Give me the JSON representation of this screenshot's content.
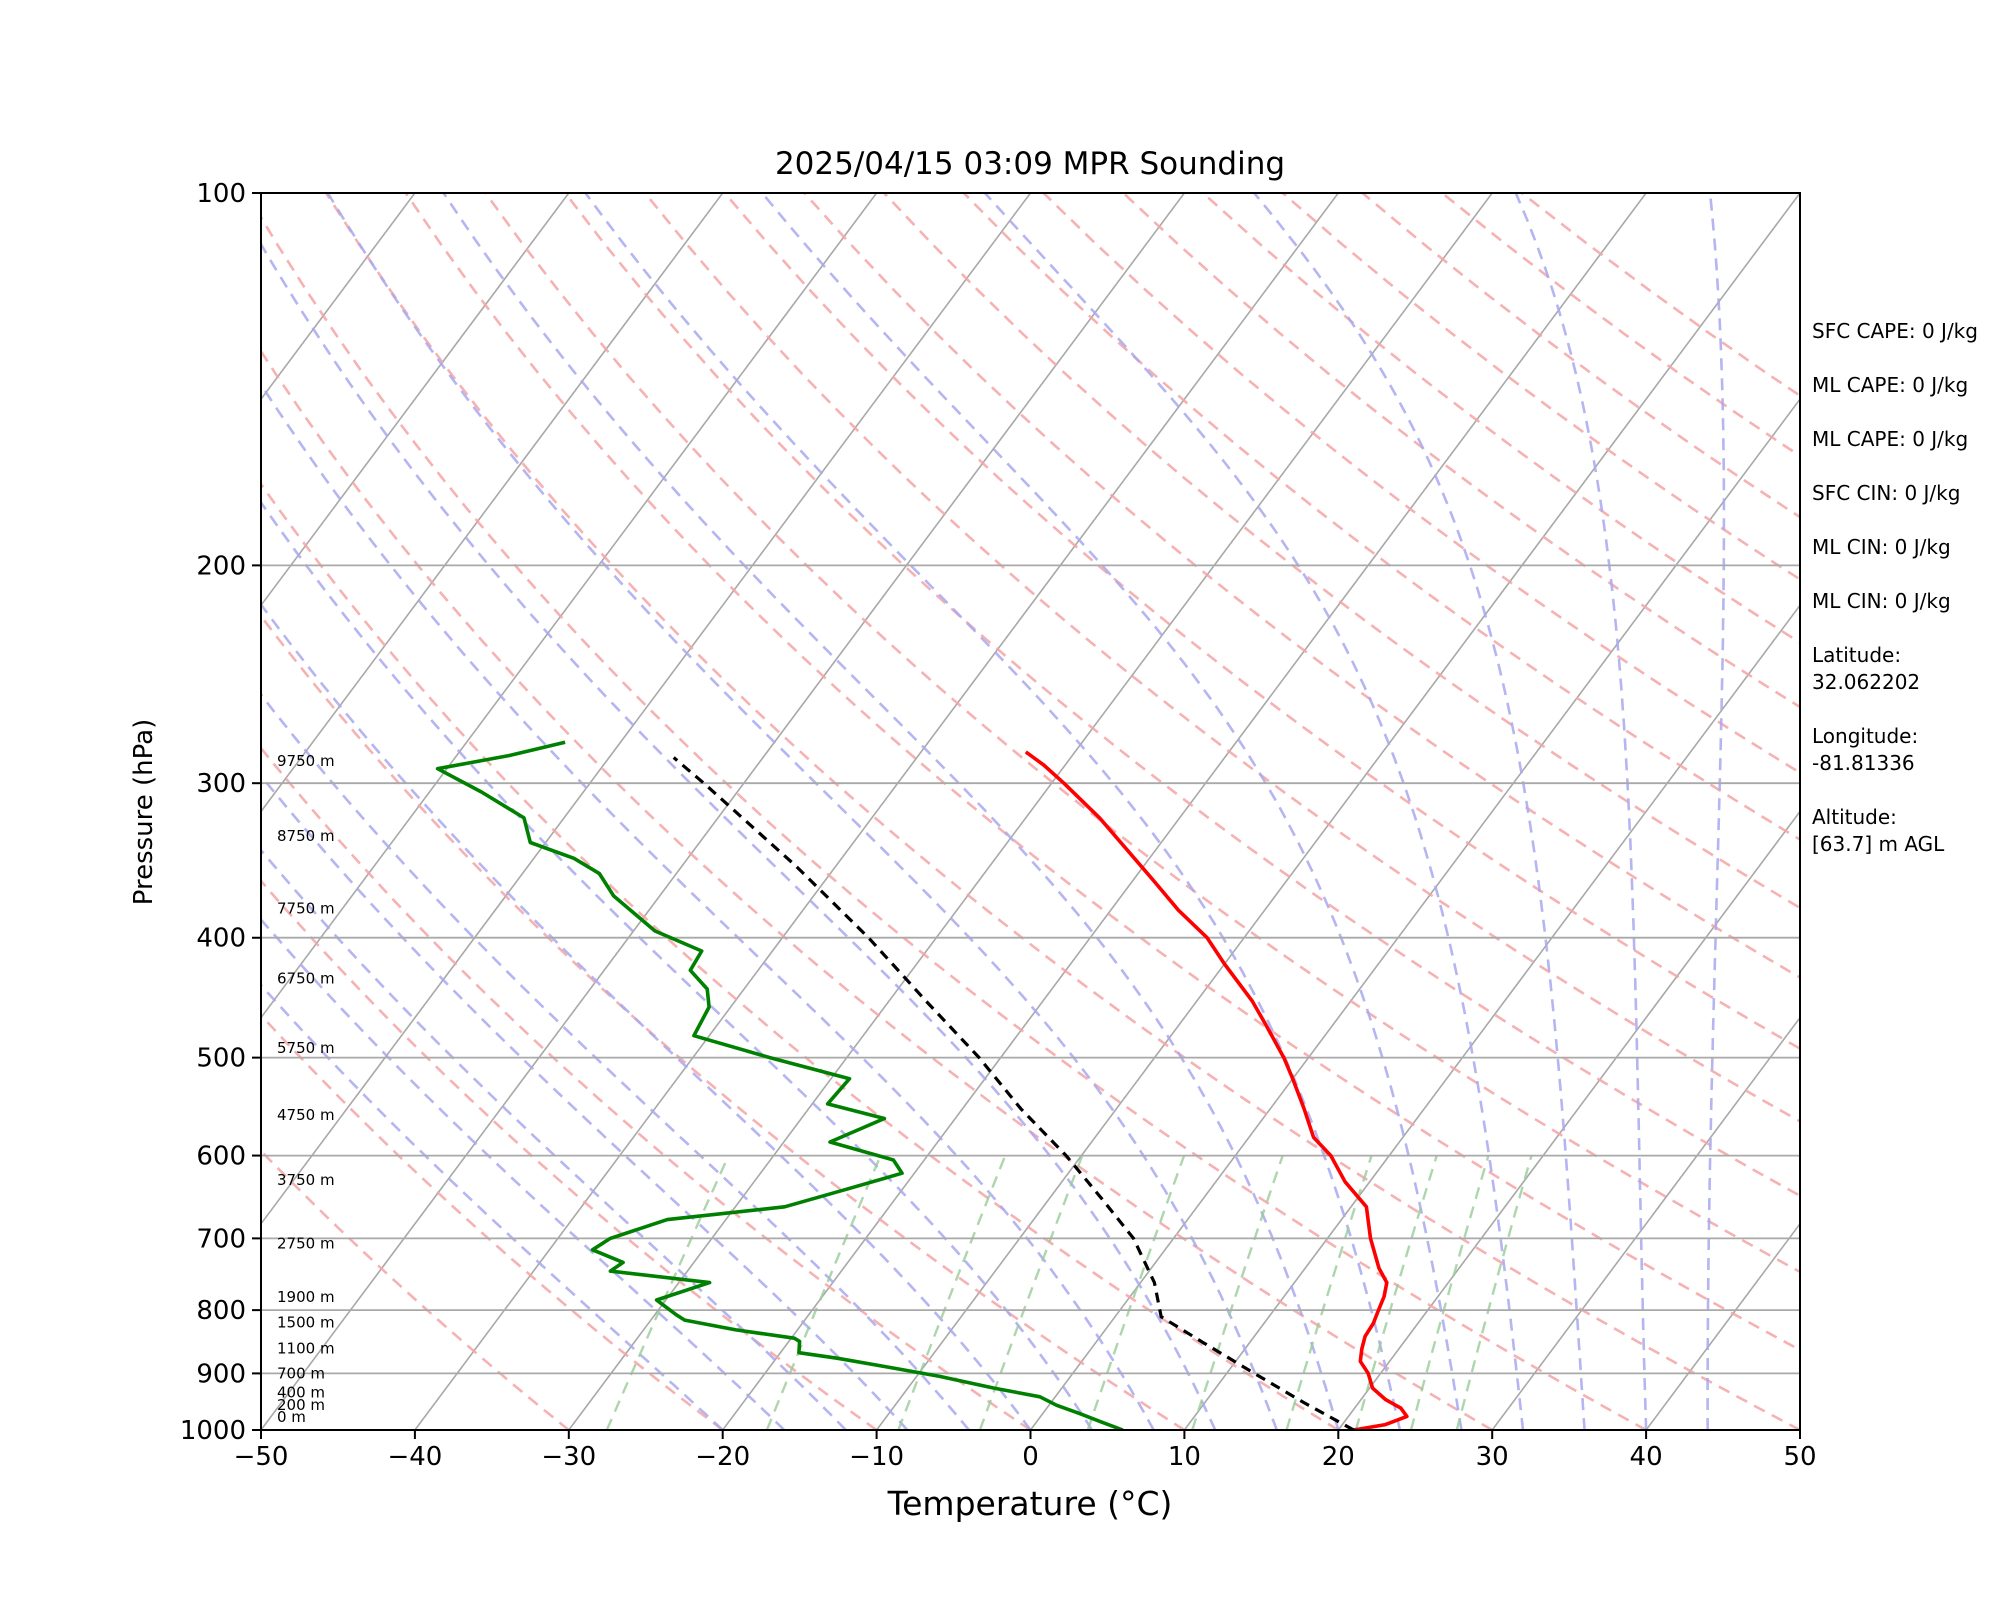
{
  "chart_data": {
    "type": "line",
    "chart_kind": "skew-T log-P",
    "title": "2025/04/15 03:09 MPR Sounding",
    "xlabel": "Temperature (°C)",
    "ylabel": "Pressure (hPa)",
    "xlim": [
      -50,
      50
    ],
    "ylim": [
      1000,
      100
    ],
    "y_scale": "log",
    "x_ticks": [
      "−50",
      "−40",
      "−30",
      "−20",
      "−10",
      "0",
      "10",
      "20",
      "30",
      "40",
      "50"
    ],
    "y_ticks": [
      "100",
      "200",
      "300",
      "400",
      "500",
      "600",
      "700",
      "800",
      "900",
      "1000"
    ],
    "grid": "horizontal isobars",
    "colors": {
      "temperature": "#ff0000",
      "dewpoint": "#008000",
      "parcel": "#000000",
      "isotherms": "#a8a8a8",
      "dry_adiabats": "#f5a5a5",
      "moist_adiabats": "#a8a8f0",
      "mixing_ratio": "#99cc99"
    },
    "height_labels": [
      {
        "text": "0 m",
        "p": 1000
      },
      {
        "text": "200 m",
        "p": 978
      },
      {
        "text": "400 m",
        "p": 955
      },
      {
        "text": "700 m",
        "p": 922
      },
      {
        "text": "1100 m",
        "p": 880
      },
      {
        "text": "1500 m",
        "p": 839
      },
      {
        "text": "1900 m",
        "p": 800
      },
      {
        "text": "2750 m",
        "p": 724
      },
      {
        "text": "3750 m",
        "p": 643
      },
      {
        "text": "4750 m",
        "p": 570
      },
      {
        "text": "5750 m",
        "p": 503
      },
      {
        "text": "6750 m",
        "p": 442
      },
      {
        "text": "7750 m",
        "p": 388
      },
      {
        "text": "8750 m",
        "p": 339
      },
      {
        "text": "9750 m",
        "p": 295
      }
    ],
    "series": [
      {
        "name": "temperature",
        "points": [
          [
            1000,
            21.0
          ],
          [
            990,
            22.8
          ],
          [
            975,
            23.8
          ],
          [
            960,
            23.0
          ],
          [
            945,
            21.6
          ],
          [
            925,
            20.2
          ],
          [
            900,
            19.2
          ],
          [
            880,
            18.1
          ],
          [
            860,
            17.6
          ],
          [
            840,
            17.2
          ],
          [
            820,
            17.1
          ],
          [
            800,
            16.8
          ],
          [
            780,
            16.5
          ],
          [
            760,
            16.0
          ],
          [
            740,
            14.8
          ],
          [
            700,
            12.8
          ],
          [
            660,
            11.0
          ],
          [
            630,
            8.4
          ],
          [
            600,
            6.2
          ],
          [
            580,
            4.2
          ],
          [
            550,
            2.2
          ],
          [
            520,
            0.0
          ],
          [
            500,
            -1.6
          ],
          [
            470,
            -4.4
          ],
          [
            450,
            -6.4
          ],
          [
            420,
            -10.0
          ],
          [
            400,
            -12.4
          ],
          [
            380,
            -15.6
          ],
          [
            360,
            -18.6
          ],
          [
            340,
            -21.8
          ],
          [
            320,
            -25.2
          ],
          [
            300,
            -29.2
          ],
          [
            290,
            -31.4
          ],
          [
            283,
            -33.2
          ]
        ]
      },
      {
        "name": "dewpoint",
        "points": [
          [
            1000,
            6.0
          ],
          [
            985,
            4.2
          ],
          [
            970,
            2.4
          ],
          [
            955,
            0.5
          ],
          [
            940,
            -1.0
          ],
          [
            925,
            -4.4
          ],
          [
            905,
            -8.5
          ],
          [
            890,
            -12.2
          ],
          [
            875,
            -16.0
          ],
          [
            866,
            -18.8
          ],
          [
            848,
            -19.3
          ],
          [
            843,
            -19.8
          ],
          [
            830,
            -24.0
          ],
          [
            815,
            -27.8
          ],
          [
            807,
            -28.6
          ],
          [
            785,
            -30.6
          ],
          [
            760,
            -28.0
          ],
          [
            744,
            -35.0
          ],
          [
            732,
            -34.6
          ],
          [
            715,
            -37.2
          ],
          [
            700,
            -36.6
          ],
          [
            676,
            -33.8
          ],
          [
            660,
            -26.8
          ],
          [
            640,
            -23.8
          ],
          [
            620,
            -20.8
          ],
          [
            605,
            -22.0
          ],
          [
            585,
            -27.0
          ],
          [
            560,
            -24.6
          ],
          [
            545,
            -29.0
          ],
          [
            520,
            -28.8
          ],
          [
            500,
            -35.0
          ],
          [
            480,
            -41.0
          ],
          [
            455,
            -41.4
          ],
          [
            440,
            -42.4
          ],
          [
            425,
            -44.4
          ],
          [
            410,
            -44.6
          ],
          [
            395,
            -48.6
          ],
          [
            370,
            -53.0
          ],
          [
            355,
            -55.0
          ],
          [
            345,
            -57.4
          ],
          [
            335,
            -61.0
          ],
          [
            320,
            -62.6
          ],
          [
            305,
            -66.6
          ],
          [
            292,
            -70.6
          ],
          [
            285,
            -66.6
          ],
          [
            278,
            -63.6
          ]
        ]
      },
      {
        "name": "parcel",
        "points": [
          [
            1000,
            21.0
          ],
          [
            950,
            16.4
          ],
          [
            900,
            11.8
          ],
          [
            850,
            7.0
          ],
          [
            810,
            3.0
          ],
          [
            760,
            0.9
          ],
          [
            700,
            -2.6
          ],
          [
            650,
            -6.6
          ],
          [
            600,
            -11.0
          ],
          [
            550,
            -16.2
          ],
          [
            500,
            -21.4
          ],
          [
            450,
            -27.6
          ],
          [
            400,
            -34.4
          ],
          [
            350,
            -42.6
          ],
          [
            300,
            -52.6
          ],
          [
            286,
            -55.8
          ]
        ]
      }
    ]
  },
  "side_panel": [
    "SFC CAPE: 0 J/kg",
    "ML CAPE: 0 J/kg",
    "ML CAPE: 0 J/kg",
    "SFC CIN: 0 J/kg",
    "ML CIN: 0 J/kg",
    "ML CIN: 0 J/kg",
    "Latitude:\n32.062202",
    "Longitude:\n-81.81336",
    "Altitude:\n[63.7] m AGL"
  ]
}
